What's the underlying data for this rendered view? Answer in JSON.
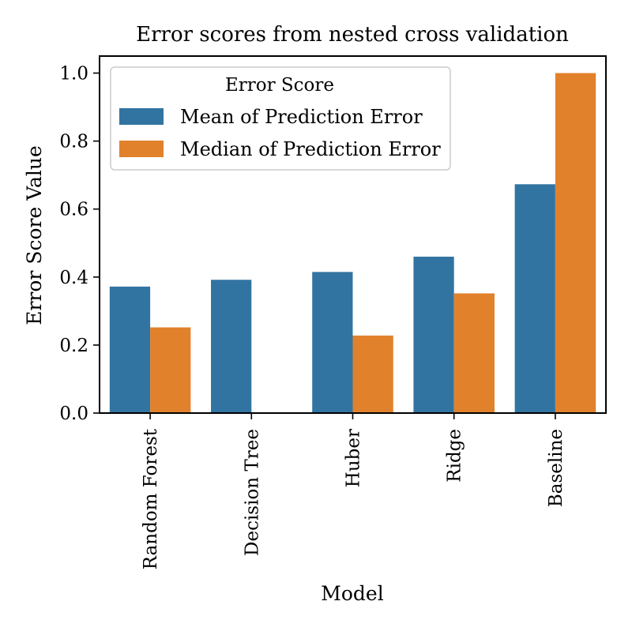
{
  "chart_data": {
    "type": "bar",
    "title": "Error scores from nested cross validation",
    "xlabel": "Model",
    "ylabel": "Error Score Value",
    "categories": [
      "Random Forest",
      "Decision Tree",
      "Huber",
      "Ridge",
      "Baseline"
    ],
    "series": [
      {
        "name": "Mean of Prediction Error",
        "color": "#3274a1",
        "values": [
          0.372,
          0.392,
          0.415,
          0.46,
          0.673
        ]
      },
      {
        "name": "Median of Prediction Error",
        "color": "#e1812c",
        "values": [
          0.252,
          0.0,
          0.228,
          0.352,
          1.0
        ]
      }
    ],
    "ylim": [
      0,
      1.05
    ],
    "yticks": [
      0.0,
      0.2,
      0.4,
      0.6,
      0.8,
      1.0
    ],
    "ytick_labels": [
      "0.0",
      "0.2",
      "0.4",
      "0.6",
      "0.8",
      "1.0"
    ],
    "legend": {
      "title": "Error Score",
      "placement": "upper-left"
    },
    "grid": false
  }
}
